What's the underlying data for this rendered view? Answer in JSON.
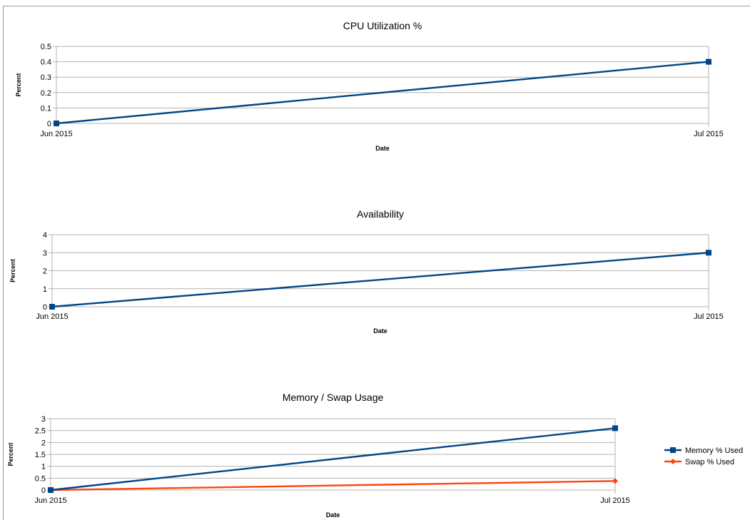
{
  "chart_data": [
    {
      "type": "line",
      "title": "CPU Utilization %",
      "xlabel": "Date",
      "ylabel": "Percent",
      "categories": [
        "Jun 2015",
        "Jul 2015"
      ],
      "ylim": [
        0,
        0.5
      ],
      "yticks": [
        "0",
        "0.1",
        "0.2",
        "0.3",
        "0.4",
        "0.5"
      ],
      "grid": true,
      "series": [
        {
          "values": [
            0,
            0.4
          ],
          "color": "#004586",
          "marker": "square"
        }
      ]
    },
    {
      "type": "line",
      "title": "Availability",
      "xlabel": "Date",
      "ylabel": "Percent",
      "categories": [
        "Jun 2015",
        "Jul 2015"
      ],
      "ylim": [
        0,
        4
      ],
      "yticks": [
        "0",
        "1",
        "2",
        "3",
        "4"
      ],
      "grid": true,
      "series": [
        {
          "values": [
            0,
            3
          ],
          "color": "#004586",
          "marker": "square"
        }
      ]
    },
    {
      "type": "line",
      "title": "Memory / Swap Usage",
      "xlabel": "Date",
      "ylabel": "Percent",
      "categories": [
        "Jun 2015",
        "Jul 2015"
      ],
      "ylim": [
        0,
        3
      ],
      "yticks": [
        "0",
        "0.5",
        "1",
        "1.5",
        "2",
        "2.5",
        "3"
      ],
      "grid": true,
      "legend": "right",
      "series": [
        {
          "name": "Memory % Used",
          "values": [
            0,
            2.6
          ],
          "color": "#004586",
          "marker": "square"
        },
        {
          "name": "Swap % Used",
          "values": [
            0,
            0.38
          ],
          "color": "#ff420e",
          "marker": "diamond"
        }
      ]
    }
  ]
}
